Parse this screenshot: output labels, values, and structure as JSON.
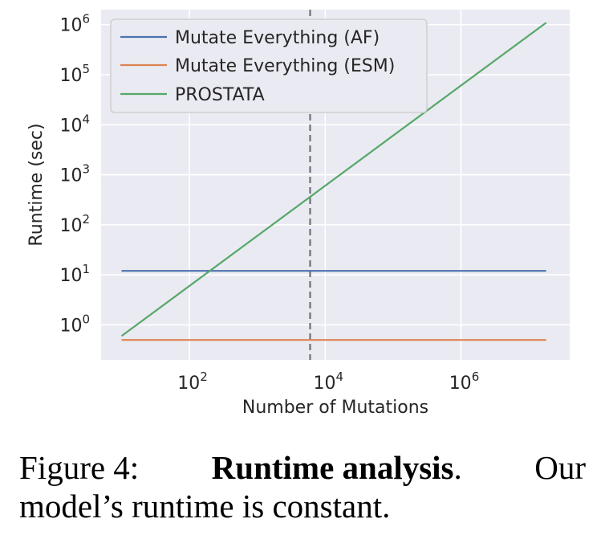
{
  "chart_data": {
    "type": "line",
    "xlabel": "Number of Mutations",
    "ylabel": "Runtime (sec)",
    "xscale": "log",
    "yscale": "log",
    "xlim": [
      5,
      40000000
    ],
    "ylim": [
      0.2,
      2000000
    ],
    "x_ticks": [
      {
        "value": 100,
        "base": "10",
        "exp": "2"
      },
      {
        "value": 10000,
        "base": "10",
        "exp": "4"
      },
      {
        "value": 1000000,
        "base": "10",
        "exp": "6"
      }
    ],
    "y_ticks": [
      {
        "value": 1,
        "base": "10",
        "exp": "0"
      },
      {
        "value": 10,
        "base": "10",
        "exp": "1"
      },
      {
        "value": 100,
        "base": "10",
        "exp": "2"
      },
      {
        "value": 1000,
        "base": "10",
        "exp": "3"
      },
      {
        "value": 10000,
        "base": "10",
        "exp": "4"
      },
      {
        "value": 100000,
        "base": "10",
        "exp": "5"
      },
      {
        "value": 1000000,
        "base": "10",
        "exp": "6"
      }
    ],
    "grid": true,
    "legend_position": "upper-left",
    "series": [
      {
        "name": "Mutate Everything (AF)",
        "color": "#4c72b0",
        "x": [
          10,
          18000000
        ],
        "y": [
          12,
          12
        ]
      },
      {
        "name": "Mutate Everything (ESM)",
        "color": "#dd8452",
        "x": [
          10,
          18000000
        ],
        "y": [
          0.5,
          0.5
        ]
      },
      {
        "name": "PROSTATA",
        "color": "#55a868",
        "x": [
          10,
          18000000
        ],
        "y": [
          0.6,
          1100000
        ]
      }
    ],
    "vline": {
      "x": 6000,
      "color": "#707070",
      "style": "dashed"
    }
  },
  "caption": {
    "prefix": "Figure 4:",
    "bold": "Runtime analysis",
    "period": ".",
    "word_our": "Our",
    "line2": "model’s runtime is constant."
  }
}
